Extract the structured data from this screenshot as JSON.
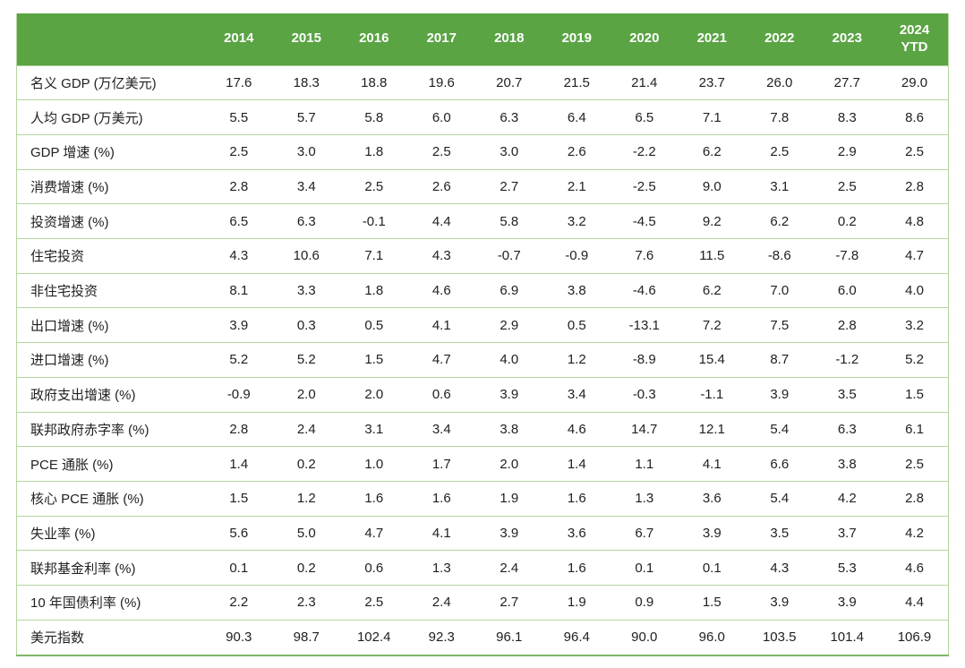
{
  "chart_data": {
    "type": "table",
    "title": "",
    "columns": [
      "2014",
      "2015",
      "2016",
      "2017",
      "2018",
      "2019",
      "2020",
      "2021",
      "2022",
      "2023",
      "2024\nYTD"
    ],
    "rows": [
      {
        "label": "名义 GDP (万亿美元)",
        "values": [
          "17.6",
          "18.3",
          "18.8",
          "19.6",
          "20.7",
          "21.5",
          "21.4",
          "23.7",
          "26.0",
          "27.7",
          "29.0"
        ]
      },
      {
        "label": "人均 GDP (万美元)",
        "values": [
          "5.5",
          "5.7",
          "5.8",
          "6.0",
          "6.3",
          "6.4",
          "6.5",
          "7.1",
          "7.8",
          "8.3",
          "8.6"
        ]
      },
      {
        "label": "GDP 增速 (%)",
        "values": [
          "2.5",
          "3.0",
          "1.8",
          "2.5",
          "3.0",
          "2.6",
          "-2.2",
          "6.2",
          "2.5",
          "2.9",
          "2.5"
        ]
      },
      {
        "label": "消费增速 (%)",
        "values": [
          "2.8",
          "3.4",
          "2.5",
          "2.6",
          "2.7",
          "2.1",
          "-2.5",
          "9.0",
          "3.1",
          "2.5",
          "2.8"
        ]
      },
      {
        "label": "投资增速 (%)",
        "values": [
          "6.5",
          "6.3",
          "-0.1",
          "4.4",
          "5.8",
          "3.2",
          "-4.5",
          "9.2",
          "6.2",
          "0.2",
          "4.8"
        ]
      },
      {
        "label": "住宅投资",
        "values": [
          "4.3",
          "10.6",
          "7.1",
          "4.3",
          "-0.7",
          "-0.9",
          "7.6",
          "11.5",
          "-8.6",
          "-7.8",
          "4.7"
        ]
      },
      {
        "label": "非住宅投资",
        "values": [
          "8.1",
          "3.3",
          "1.8",
          "4.6",
          "6.9",
          "3.8",
          "-4.6",
          "6.2",
          "7.0",
          "6.0",
          "4.0"
        ]
      },
      {
        "label": "出口增速 (%)",
        "values": [
          "3.9",
          "0.3",
          "0.5",
          "4.1",
          "2.9",
          "0.5",
          "-13.1",
          "7.2",
          "7.5",
          "2.8",
          "3.2"
        ]
      },
      {
        "label": "进口增速 (%)",
        "values": [
          "5.2",
          "5.2",
          "1.5",
          "4.7",
          "4.0",
          "1.2",
          "-8.9",
          "15.4",
          "8.7",
          "-1.2",
          "5.2"
        ]
      },
      {
        "label": "政府支出增速 (%)",
        "values": [
          "-0.9",
          "2.0",
          "2.0",
          "0.6",
          "3.9",
          "3.4",
          "-0.3",
          "-1.1",
          "3.9",
          "3.5",
          "1.5"
        ]
      },
      {
        "label": "联邦政府赤字率 (%)",
        "values": [
          "2.8",
          "2.4",
          "3.1",
          "3.4",
          "3.8",
          "4.6",
          "14.7",
          "12.1",
          "5.4",
          "6.3",
          "6.1"
        ]
      },
      {
        "label": "PCE 通胀 (%)",
        "values": [
          "1.4",
          "0.2",
          "1.0",
          "1.7",
          "2.0",
          "1.4",
          "1.1",
          "4.1",
          "6.6",
          "3.8",
          "2.5"
        ]
      },
      {
        "label": "核心 PCE 通胀 (%)",
        "values": [
          "1.5",
          "1.2",
          "1.6",
          "1.6",
          "1.9",
          "1.6",
          "1.3",
          "3.6",
          "5.4",
          "4.2",
          "2.8"
        ]
      },
      {
        "label": "失业率 (%)",
        "values": [
          "5.6",
          "5.0",
          "4.7",
          "4.1",
          "3.9",
          "3.6",
          "6.7",
          "3.9",
          "3.5",
          "3.7",
          "4.2"
        ]
      },
      {
        "label": "联邦基金利率 (%)",
        "values": [
          "0.1",
          "0.2",
          "0.6",
          "1.3",
          "2.4",
          "1.6",
          "0.1",
          "0.1",
          "4.3",
          "5.3",
          "4.6"
        ]
      },
      {
        "label": "10 年国债利率 (%)",
        "values": [
          "2.2",
          "2.3",
          "2.5",
          "2.4",
          "2.7",
          "1.9",
          "0.9",
          "1.5",
          "3.9",
          "3.9",
          "4.4"
        ]
      },
      {
        "label": "美元指数",
        "values": [
          "90.3",
          "98.7",
          "102.4",
          "92.3",
          "96.1",
          "96.4",
          "90.0",
          "96.0",
          "103.5",
          "101.4",
          "106.9"
        ]
      }
    ],
    "layout": {
      "grid": "horizontal-row-separators-only",
      "header_position": "top"
    },
    "colors": {
      "header_bg": "#5aa444",
      "header_text": "#ffffff",
      "row_separator": "#b4d5a2",
      "outer_border": "#b4d5a2",
      "bottom_border": "#7fb765",
      "body_text": "#212121",
      "body_bg": "#ffffff"
    }
  }
}
